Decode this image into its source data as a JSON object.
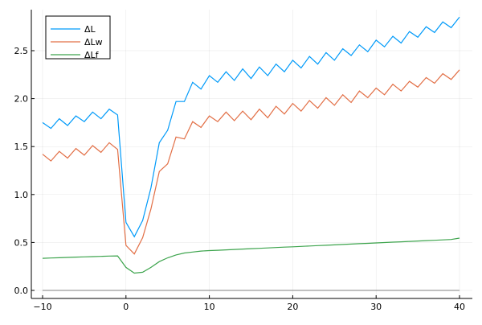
{
  "chart_data": {
    "type": "line",
    "title": "",
    "xlabel": "",
    "ylabel": "",
    "xlim": [
      -11,
      41
    ],
    "ylim": [
      -0.08,
      2.95
    ],
    "xticks": [
      -10,
      0,
      10,
      20,
      30,
      40
    ],
    "xtick_labels": [
      "−10",
      "0",
      "10",
      "20",
      "30",
      "40"
    ],
    "yticks": [
      0,
      0.5,
      1.0,
      1.5,
      2.0,
      2.5
    ],
    "ytick_labels": [
      "0.0",
      "0.5",
      "1.0",
      "1.5",
      "2.0",
      "2.5"
    ],
    "grid": true,
    "legend_position": "top-left",
    "x": [
      -10,
      -9,
      -8,
      -7,
      -6,
      -5,
      -4,
      -3,
      -2,
      -1,
      0,
      1,
      2,
      3,
      4,
      5,
      6,
      7,
      8,
      9,
      10,
      11,
      12,
      13,
      14,
      15,
      16,
      17,
      18,
      19,
      20,
      21,
      22,
      23,
      24,
      25,
      26,
      27,
      28,
      29,
      30,
      31,
      32,
      33,
      34,
      35,
      36,
      37,
      38,
      39,
      40
    ],
    "series": [
      {
        "name": "ΔL",
        "color": "#009af9",
        "values": [
          1.75,
          1.69,
          1.79,
          1.72,
          1.82,
          1.76,
          1.86,
          1.79,
          1.89,
          1.83,
          0.71,
          0.56,
          0.73,
          1.07,
          1.54,
          1.67,
          1.97,
          1.97,
          2.17,
          2.1,
          2.24,
          2.17,
          2.28,
          2.19,
          2.31,
          2.21,
          2.33,
          2.24,
          2.36,
          2.28,
          2.4,
          2.32,
          2.44,
          2.36,
          2.48,
          2.4,
          2.52,
          2.45,
          2.56,
          2.49,
          2.61,
          2.54,
          2.65,
          2.58,
          2.7,
          2.64,
          2.75,
          2.69,
          2.8,
          2.74,
          2.85
        ]
      },
      {
        "name": "ΔLw",
        "color": "#e26f46",
        "values": [
          1.42,
          1.35,
          1.45,
          1.38,
          1.48,
          1.41,
          1.51,
          1.44,
          1.54,
          1.47,
          0.47,
          0.38,
          0.55,
          0.85,
          1.24,
          1.32,
          1.6,
          1.58,
          1.76,
          1.7,
          1.82,
          1.76,
          1.86,
          1.77,
          1.87,
          1.78,
          1.89,
          1.8,
          1.92,
          1.84,
          1.95,
          1.87,
          1.98,
          1.9,
          2.01,
          1.93,
          2.04,
          1.96,
          2.08,
          2.01,
          2.11,
          2.04,
          2.15,
          2.08,
          2.18,
          2.12,
          2.22,
          2.16,
          2.26,
          2.2,
          2.3
        ]
      },
      {
        "name": "ΔLf",
        "color": "#3da44d",
        "values": [
          0.335,
          0.338,
          0.341,
          0.344,
          0.347,
          0.35,
          0.352,
          0.355,
          0.358,
          0.36,
          0.24,
          0.18,
          0.19,
          0.24,
          0.3,
          0.34,
          0.37,
          0.39,
          0.4,
          0.41,
          0.415,
          0.419,
          0.423,
          0.427,
          0.431,
          0.435,
          0.439,
          0.443,
          0.447,
          0.451,
          0.455,
          0.459,
          0.463,
          0.467,
          0.471,
          0.475,
          0.479,
          0.483,
          0.487,
          0.491,
          0.495,
          0.499,
          0.503,
          0.507,
          0.511,
          0.515,
          0.519,
          0.523,
          0.527,
          0.531,
          0.545
        ]
      }
    ],
    "reference_line": {
      "y": 0,
      "color": "#808080"
    }
  }
}
